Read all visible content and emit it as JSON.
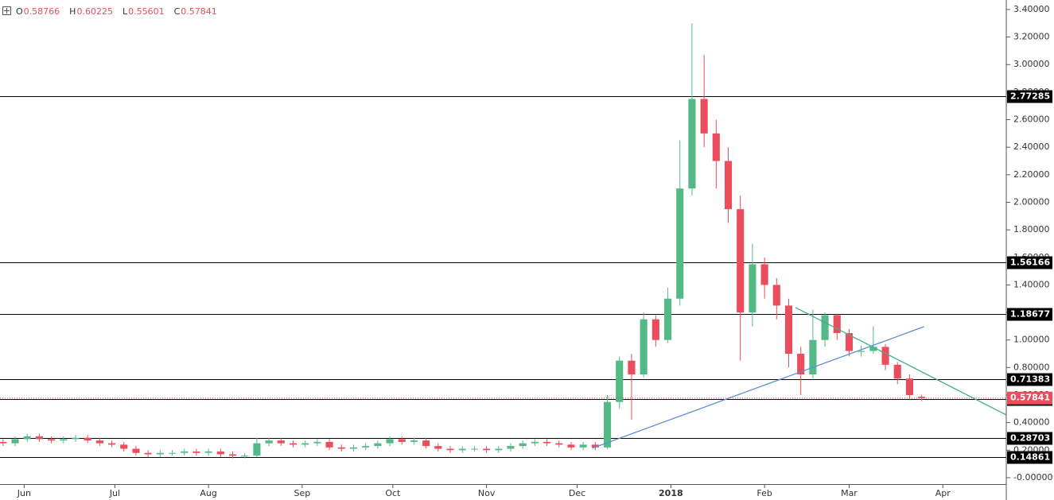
{
  "chart_data": {
    "type": "candlestick",
    "ohlc_labels": [
      "O",
      "H",
      "L",
      "C"
    ],
    "x": [
      2,
      6,
      10,
      14,
      18,
      22,
      26,
      30,
      34,
      38,
      42,
      46,
      50,
      54,
      58,
      62,
      66,
      70,
      74,
      78,
      82,
      86,
      90,
      94,
      98,
      102,
      106,
      110,
      114,
      118,
      122,
      126,
      130,
      134,
      138,
      142,
      146,
      150,
      154,
      158,
      162,
      166,
      170,
      174,
      178,
      182,
      186,
      190,
      194,
      198,
      202,
      206,
      210,
      214,
      218,
      222,
      226,
      230,
      234,
      238,
      242,
      246,
      250,
      254,
      258,
      262,
      266,
      270,
      274,
      278,
      282,
      286,
      290,
      294,
      298,
      302,
      306
    ],
    "open": [
      0.26,
      0.25,
      0.28,
      0.3,
      0.28,
      0.27,
      0.28,
      0.29,
      0.27,
      0.25,
      0.24,
      0.21,
      0.18,
      0.17,
      0.18,
      0.18,
      0.19,
      0.18,
      0.19,
      0.17,
      0.16,
      0.16,
      0.25,
      0.27,
      0.25,
      0.24,
      0.25,
      0.26,
      0.22,
      0.21,
      0.22,
      0.23,
      0.25,
      0.28,
      0.26,
      0.27,
      0.23,
      0.21,
      0.2,
      0.21,
      0.21,
      0.2,
      0.21,
      0.23,
      0.25,
      0.26,
      0.25,
      0.24,
      0.22,
      0.24,
      0.22,
      0.55,
      0.85,
      0.75,
      1.15,
      1.0,
      1.3,
      2.1,
      2.75,
      2.5,
      2.3,
      1.95,
      1.2,
      1.55,
      1.4,
      1.25,
      0.9,
      0.75,
      1.0,
      1.18,
      1.05,
      0.92,
      0.92,
      0.95,
      0.82,
      0.72,
      0.58766
    ],
    "high": [
      0.28,
      0.3,
      0.32,
      0.32,
      0.3,
      0.3,
      0.31,
      0.31,
      0.29,
      0.27,
      0.26,
      0.23,
      0.2,
      0.2,
      0.2,
      0.21,
      0.21,
      0.21,
      0.21,
      0.19,
      0.18,
      0.29,
      0.29,
      0.29,
      0.27,
      0.27,
      0.28,
      0.28,
      0.24,
      0.24,
      0.25,
      0.27,
      0.3,
      0.3,
      0.29,
      0.29,
      0.25,
      0.23,
      0.23,
      0.23,
      0.23,
      0.23,
      0.25,
      0.27,
      0.28,
      0.28,
      0.27,
      0.26,
      0.26,
      0.26,
      0.6,
      0.88,
      0.9,
      1.2,
      1.18,
      1.38,
      2.45,
      3.3,
      3.07,
      2.6,
      2.4,
      2.05,
      1.7,
      1.6,
      1.45,
      1.3,
      0.95,
      1.22,
      1.2,
      1.19,
      1.08,
      0.96,
      1.1,
      0.97,
      0.84,
      0.75,
      0.60225
    ],
    "low": [
      0.23,
      0.23,
      0.26,
      0.26,
      0.25,
      0.25,
      0.26,
      0.25,
      0.23,
      0.22,
      0.19,
      0.16,
      0.15,
      0.15,
      0.16,
      0.16,
      0.16,
      0.16,
      0.15,
      0.14,
      0.14,
      0.15,
      0.23,
      0.23,
      0.22,
      0.22,
      0.23,
      0.2,
      0.19,
      0.19,
      0.2,
      0.21,
      0.23,
      0.24,
      0.24,
      0.21,
      0.19,
      0.18,
      0.18,
      0.19,
      0.18,
      0.18,
      0.19,
      0.21,
      0.23,
      0.23,
      0.22,
      0.2,
      0.2,
      0.2,
      0.21,
      0.5,
      0.42,
      0.73,
      0.95,
      0.98,
      1.25,
      2.05,
      2.4,
      2.1,
      1.85,
      0.85,
      1.1,
      1.3,
      1.15,
      0.8,
      0.6,
      0.72,
      0.95,
      1.0,
      0.88,
      0.88,
      0.9,
      0.78,
      0.68,
      0.57,
      0.55601
    ],
    "close": [
      0.25,
      0.28,
      0.3,
      0.28,
      0.27,
      0.28,
      0.29,
      0.27,
      0.25,
      0.24,
      0.21,
      0.18,
      0.17,
      0.18,
      0.18,
      0.19,
      0.18,
      0.19,
      0.17,
      0.16,
      0.16,
      0.25,
      0.27,
      0.25,
      0.24,
      0.25,
      0.26,
      0.22,
      0.21,
      0.22,
      0.23,
      0.25,
      0.28,
      0.26,
      0.27,
      0.23,
      0.21,
      0.2,
      0.21,
      0.21,
      0.2,
      0.21,
      0.23,
      0.25,
      0.26,
      0.25,
      0.24,
      0.22,
      0.24,
      0.22,
      0.55,
      0.85,
      0.75,
      1.15,
      1.0,
      1.3,
      2.1,
      2.75,
      2.5,
      2.3,
      1.95,
      1.2,
      1.55,
      1.4,
      1.25,
      0.9,
      0.75,
      1.0,
      1.18,
      1.05,
      0.92,
      0.92,
      0.95,
      0.82,
      0.72,
      0.6,
      0.57841
    ],
    "up_color": "#53b987",
    "down_color": "#eb4d5c",
    "levels": [
      2.77285,
      1.56166,
      1.18677,
      0.71383,
      0.56964,
      0.28703,
      0.14861
    ],
    "level_color": "#000000",
    "trendlines": [
      {
        "color": "#5b8fd9",
        "x": [
          197,
          306.8
        ],
        "y": [
          0.214,
          1.097
        ]
      },
      {
        "color": "#3fae90",
        "x": [
          264.2,
          334
        ],
        "y": [
          1.236,
          0.456
        ]
      }
    ],
    "xlim": [
      1,
      334
    ],
    "ylim": [
      -0.162,
      3.469
    ],
    "xticks": [
      {
        "value": 9,
        "label": "Jun"
      },
      {
        "value": 39,
        "label": "Jul"
      },
      {
        "value": 70,
        "label": "Aug"
      },
      {
        "value": 101,
        "label": "Sep"
      },
      {
        "value": 131,
        "label": "Oct"
      },
      {
        "value": 162,
        "label": "Nov"
      },
      {
        "value": 192,
        "label": "Dec"
      },
      {
        "value": 223,
        "label": "2018"
      },
      {
        "value": 254,
        "label": "Feb"
      },
      {
        "value": 282,
        "label": "Mar"
      },
      {
        "value": 313,
        "label": "Apr"
      }
    ],
    "yticks": [
      {
        "value": 0,
        "label": "-0.00000"
      },
      {
        "value": 0.2,
        "label": "0.20000"
      },
      {
        "value": 0.4,
        "label": "0.40000"
      },
      {
        "value": 0.6,
        "label": "0.60000"
      },
      {
        "value": 0.8,
        "label": "0.80000"
      },
      {
        "value": 1.0,
        "label": "1.00000"
      },
      {
        "value": 1.2,
        "label": "1.20000"
      },
      {
        "value": 1.4,
        "label": "1.40000"
      },
      {
        "value": 1.6,
        "label": "1.60000"
      },
      {
        "value": 1.8,
        "label": "1.80000"
      },
      {
        "value": 2.0,
        "label": "2.00000"
      },
      {
        "value": 2.2,
        "label": "2.20000"
      },
      {
        "value": 2.4,
        "label": "2.40000"
      },
      {
        "value": 2.6,
        "label": "2.60000"
      },
      {
        "value": 2.8,
        "label": "2.80000"
      },
      {
        "value": 3.0,
        "label": "3.00000"
      },
      {
        "value": 3.2,
        "label": "3.20000"
      },
      {
        "value": 3.4,
        "label": "3.40000"
      }
    ]
  }
}
